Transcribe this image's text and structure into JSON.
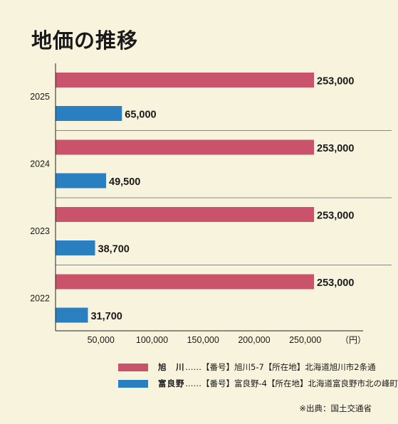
{
  "title": "地価の推移",
  "unit_label": "（円）",
  "source": "※出典：国土交通省",
  "legend": [
    {
      "name": "旭　川",
      "description": "……【番号】旭川5-7【所在地】北海道旭川市2条通",
      "color": "#c9536b"
    },
    {
      "name": "富良野",
      "description": "……【番号】富良野-4【所在地】北海道富良野市北の峰町",
      "color": "#2a7fc0"
    }
  ],
  "chart_data": {
    "type": "bar",
    "orientation": "horizontal",
    "categories": [
      "2025",
      "2024",
      "2023",
      "2022"
    ],
    "series": [
      {
        "name": "旭　川",
        "color": "#c9536b",
        "values": [
          253000,
          253000,
          253000,
          253000
        ]
      },
      {
        "name": "富良野",
        "color": "#2a7fc0",
        "values": [
          65000,
          49500,
          38700,
          31700
        ]
      }
    ],
    "data_labels": [
      [
        "253,000",
        "253,000",
        "253,000",
        "253,000"
      ],
      [
        "65,000",
        "49,500",
        "38,700",
        "31,700"
      ]
    ],
    "xticks": [
      50000,
      100000,
      150000,
      200000,
      250000
    ],
    "xtick_labels": [
      "50,000",
      "100,000",
      "150,000",
      "200,000",
      "250,000"
    ],
    "xlim": [
      0,
      300000
    ],
    "grid": false
  }
}
